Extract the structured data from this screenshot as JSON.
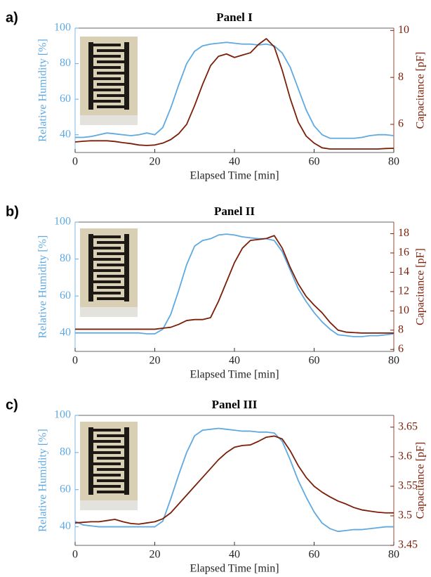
{
  "chart_data": [
    {
      "type": "line",
      "panel_label": "a)",
      "title": "Panel I",
      "xlabel": "Elapsed Time [min]",
      "ylabel": "Relative Humidity [%]",
      "y2label": "Capacitance [pF]",
      "x": [
        0,
        2,
        4,
        6,
        8,
        10,
        12,
        14,
        16,
        18,
        20,
        22,
        24,
        26,
        28,
        30,
        32,
        34,
        36,
        38,
        40,
        42,
        44,
        46,
        48,
        50,
        52,
        54,
        56,
        58,
        60,
        62,
        64,
        66,
        68,
        70,
        72,
        74,
        76,
        78,
        80
      ],
      "xlim": [
        0,
        80
      ],
      "xticks": [
        0,
        20,
        40,
        60,
        80
      ],
      "ylim": [
        30,
        100
      ],
      "yticks": [
        40,
        60,
        80,
        100
      ],
      "y2lim": [
        4.8,
        10.1
      ],
      "y2ticks": [
        6,
        8,
        10
      ],
      "series": [
        {
          "color": "#5fa9e1",
          "values": [
            38.5,
            38.5,
            39,
            40,
            41,
            40.5,
            40,
            39.5,
            40,
            41,
            40,
            44,
            55,
            68,
            80,
            87,
            90,
            91,
            91.5,
            92,
            91.5,
            91,
            91,
            90.5,
            91,
            90,
            86,
            78,
            66,
            54,
            45,
            40,
            38,
            38,
            38,
            38,
            38.5,
            39.5,
            40,
            40,
            39.5
          ]
        },
        {
          "color": "#7b1e08",
          "axis": "y2",
          "values": [
            5.25,
            5.28,
            5.3,
            5.3,
            5.3,
            5.27,
            5.22,
            5.18,
            5.12,
            5.1,
            5.12,
            5.2,
            5.35,
            5.6,
            6.0,
            6.8,
            7.7,
            8.5,
            8.9,
            9.0,
            8.85,
            8.95,
            9.05,
            9.4,
            9.65,
            9.3,
            8.3,
            7.1,
            6.1,
            5.5,
            5.2,
            5.0,
            4.95,
            4.95,
            4.95,
            4.95,
            4.95,
            4.95,
            4.95,
            4.97,
            4.98
          ]
        }
      ]
    },
    {
      "type": "line",
      "panel_label": "b)",
      "title": "Panel II",
      "xlabel": "Elapsed Time [min]",
      "ylabel": "Relative Humidity [%]",
      "y2label": "Capacitance [pF]",
      "x": [
        0,
        2,
        4,
        6,
        8,
        10,
        12,
        14,
        16,
        18,
        20,
        22,
        24,
        26,
        28,
        30,
        32,
        34,
        36,
        38,
        40,
        42,
        44,
        46,
        48,
        50,
        52,
        54,
        56,
        58,
        60,
        62,
        64,
        66,
        68,
        70,
        72,
        74,
        76,
        78,
        80
      ],
      "xlim": [
        0,
        80
      ],
      "xticks": [
        0,
        20,
        40,
        60,
        80
      ],
      "ylim": [
        30,
        100
      ],
      "yticks": [
        40,
        60,
        80,
        100
      ],
      "y2lim": [
        5.8,
        19.2
      ],
      "y2ticks": [
        6,
        8,
        10,
        12,
        14,
        16,
        18
      ],
      "series": [
        {
          "color": "#5fa9e1",
          "values": [
            40,
            40,
            40,
            40,
            40,
            40,
            40,
            40,
            40,
            39.5,
            39.5,
            42,
            50,
            63,
            77,
            87,
            90,
            91,
            93,
            93.5,
            93,
            92,
            91.5,
            91,
            91,
            90,
            84,
            74,
            64,
            57,
            51,
            46,
            42,
            39,
            38.5,
            38,
            38,
            38.5,
            38.5,
            39,
            39.5
          ]
        },
        {
          "color": "#7b1e08",
          "axis": "y2",
          "values": [
            8.1,
            8.1,
            8.1,
            8.1,
            8.1,
            8.1,
            8.1,
            8.1,
            8.1,
            8.1,
            8.1,
            8.2,
            8.3,
            8.6,
            9.0,
            9.1,
            9.1,
            9.3,
            11,
            13,
            15,
            16.5,
            17.3,
            17.4,
            17.5,
            17.8,
            16.5,
            14.5,
            12.8,
            11.5,
            10.6,
            9.8,
            8.8,
            8.0,
            7.8,
            7.75,
            7.7,
            7.7,
            7.7,
            7.7,
            7.7
          ]
        }
      ]
    },
    {
      "type": "line",
      "panel_label": "c)",
      "title": "Panel III",
      "xlabel": "Elapsed Time [min]",
      "ylabel": "Relative Humidity [%]",
      "y2label": "Capacitance [pF]",
      "x": [
        0,
        2,
        4,
        6,
        8,
        10,
        12,
        14,
        16,
        18,
        20,
        22,
        24,
        26,
        28,
        30,
        32,
        34,
        36,
        38,
        40,
        42,
        44,
        46,
        48,
        50,
        52,
        54,
        56,
        58,
        60,
        62,
        64,
        66,
        68,
        70,
        72,
        74,
        76,
        78,
        80
      ],
      "xlim": [
        0,
        80
      ],
      "xticks": [
        0,
        20,
        40,
        60,
        80
      ],
      "ylim": [
        30,
        100
      ],
      "yticks": [
        40,
        60,
        80,
        100
      ],
      "y2lim": [
        3.45,
        3.67
      ],
      "y2ticks": [
        3.45,
        3.5,
        3.55,
        3.6,
        3.65
      ],
      "series": [
        {
          "color": "#5fa9e1",
          "values": [
            43,
            41,
            40.5,
            40,
            40,
            40,
            40,
            40,
            40,
            40,
            40,
            43,
            55,
            68,
            80,
            89,
            92,
            92.5,
            93,
            92.5,
            92,
            91.5,
            91.5,
            91,
            91,
            90.5,
            86,
            76,
            65,
            56,
            48,
            42,
            39,
            37.5,
            38,
            38.5,
            38.5,
            39,
            39.5,
            40,
            40
          ]
        },
        {
          "color": "#7b1e08",
          "axis": "y2",
          "values": [
            3.488,
            3.489,
            3.49,
            3.49,
            3.492,
            3.494,
            3.49,
            3.487,
            3.486,
            3.488,
            3.49,
            3.495,
            3.505,
            3.52,
            3.535,
            3.55,
            3.565,
            3.58,
            3.595,
            3.607,
            3.616,
            3.619,
            3.62,
            3.626,
            3.633,
            3.635,
            3.63,
            3.61,
            3.585,
            3.565,
            3.55,
            3.54,
            3.532,
            3.525,
            3.52,
            3.514,
            3.51,
            3.508,
            3.506,
            3.505,
            3.505
          ]
        }
      ]
    }
  ]
}
